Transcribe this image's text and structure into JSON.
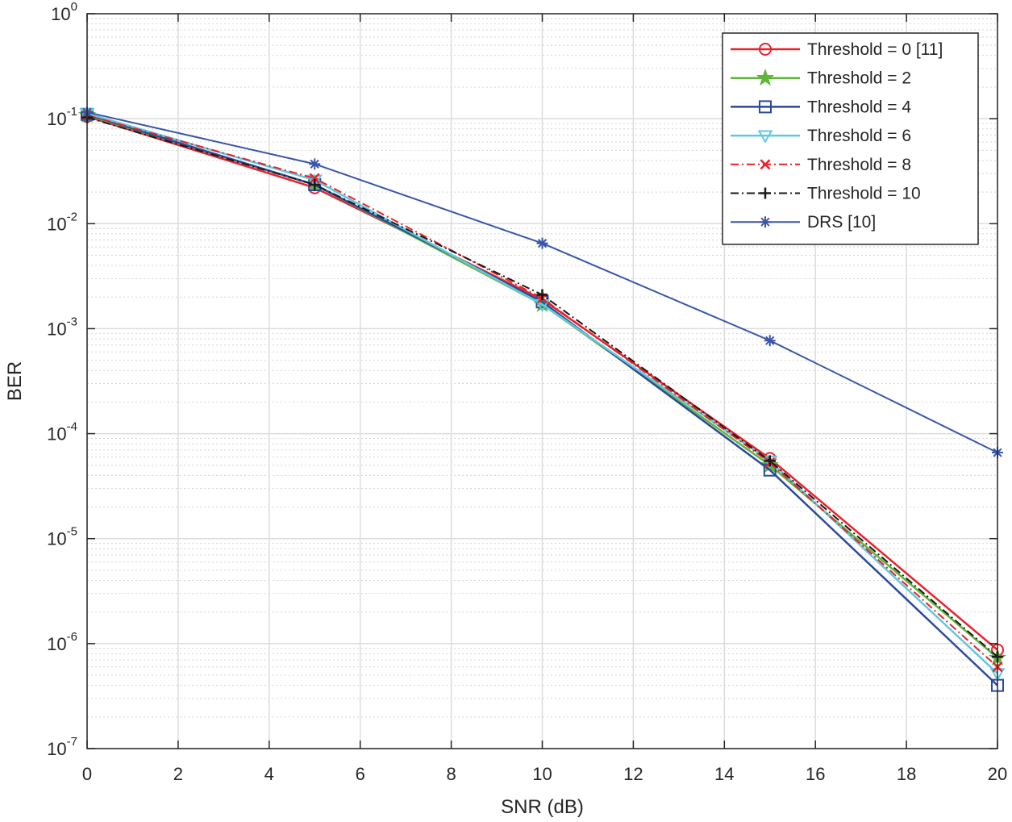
{
  "chart_data": {
    "type": "line",
    "title": "",
    "xlabel": "SNR (dB)",
    "ylabel": "BER",
    "xlim": [
      0,
      20
    ],
    "ylim": [
      1e-07,
      1
    ],
    "yscale": "log",
    "grid": true,
    "minor_grid": true,
    "legend_position": "top-right",
    "x_ticks": [
      0,
      2,
      4,
      6,
      8,
      10,
      12,
      14,
      16,
      18,
      20
    ],
    "x_tick_labels": [
      "0",
      "2",
      "4",
      "6",
      "8",
      "10",
      "12",
      "14",
      "16",
      "18",
      "20"
    ],
    "y_ticks": [
      {
        "value": 1,
        "base": "10",
        "exp": "0"
      },
      {
        "value": 0.1,
        "base": "10",
        "exp": "-1"
      },
      {
        "value": 0.01,
        "base": "10",
        "exp": "-2"
      },
      {
        "value": 0.001,
        "base": "10",
        "exp": "-3"
      },
      {
        "value": 0.0001,
        "base": "10",
        "exp": "-4"
      },
      {
        "value": 1e-05,
        "base": "10",
        "exp": "-5"
      },
      {
        "value": 1e-06,
        "base": "10",
        "exp": "-6"
      },
      {
        "value": 1e-07,
        "base": "10",
        "exp": "-7"
      }
    ],
    "x": [
      0,
      5,
      10,
      15,
      20
    ],
    "series": [
      {
        "name": "Threshold = 0 [11]",
        "color": "#e8222b",
        "marker": "circle",
        "dash": "solid",
        "width": 2.5,
        "values": [
          0.105,
          0.022,
          0.0019,
          5.8e-05,
          8.7e-07
        ]
      },
      {
        "name": "Threshold = 2",
        "color": "#5fb63a",
        "marker": "star",
        "dash": "solid",
        "width": 2.5,
        "values": [
          0.108,
          0.0235,
          0.0017,
          5e-05,
          7.3e-07
        ]
      },
      {
        "name": "Threshold = 4",
        "color": "#2b4a9a",
        "marker": "square",
        "dash": "solid",
        "width": 2.5,
        "values": [
          0.11,
          0.0235,
          0.0018,
          4.5e-05,
          4e-07
        ]
      },
      {
        "name": "Threshold = 6",
        "color": "#5fc9e0",
        "marker": "triangle-down",
        "dash": "solid",
        "width": 2.5,
        "values": [
          0.112,
          0.026,
          0.0017,
          5.5e-05,
          5.2e-07
        ]
      },
      {
        "name": "Threshold = 8",
        "color": "#e8222b",
        "marker": "x",
        "dash": "dashdot",
        "width": 2,
        "values": [
          0.108,
          0.027,
          0.00195,
          5.3e-05,
          6e-07
        ]
      },
      {
        "name": "Threshold = 10",
        "color": "#1a1a1a",
        "marker": "plus",
        "dash": "dashdot",
        "width": 2,
        "values": [
          0.103,
          0.0235,
          0.0021,
          5.5e-05,
          7.5e-07
        ]
      },
      {
        "name": "DRS [10]",
        "color": "#3a56a8",
        "marker": "asterisk",
        "dash": "solid",
        "width": 2,
        "values": [
          0.115,
          0.037,
          0.0065,
          0.00077,
          6.6e-05
        ]
      }
    ]
  }
}
